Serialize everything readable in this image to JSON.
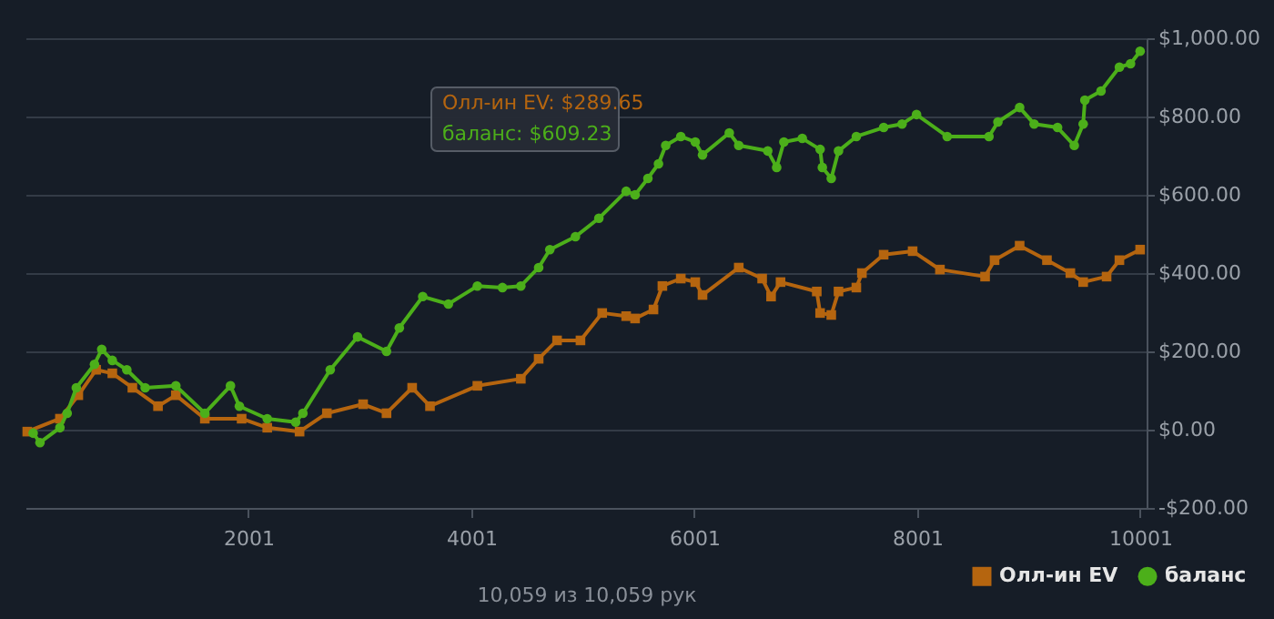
{
  "chart_data": {
    "type": "line",
    "xlabel": "10,059 из 10,059 рук",
    "xlim": [
      1,
      10059
    ],
    "xticks": [
      2001,
      4001,
      6001,
      8001,
      10001
    ],
    "ylim": [
      -200,
      1000
    ],
    "yticks": [
      {
        "value": -200,
        "label": "-$200.00"
      },
      {
        "value": 0,
        "label": "$0.00"
      },
      {
        "value": 200,
        "label": "$200.00"
      },
      {
        "value": 400,
        "label": "$400.00"
      },
      {
        "value": 600,
        "label": "$600.00"
      },
      {
        "value": 800,
        "label": "$800.00"
      },
      {
        "value": 1000,
        "label": "$1,000.00"
      }
    ],
    "grid": "y",
    "legend": "bottom right",
    "line_style": "solid",
    "series": [
      {
        "name": "Олл-ин EV",
        "color": "#b5650f",
        "marker": "square",
        "x": [
          17,
          310,
          475,
          635,
          780,
          960,
          1190,
          1350,
          1610,
          1940,
          2170,
          2460,
          2705,
          3030,
          3240,
          3470,
          3630,
          4055,
          4445,
          4605,
          4770,
          4980,
          5175,
          5390,
          5470,
          5635,
          5715,
          5880,
          6010,
          6075,
          6400,
          6610,
          6690,
          6775,
          7100,
          7130,
          7230,
          7295,
          7455,
          7505,
          7700,
          7960,
          8205,
          8610,
          8695,
          8920,
          9165,
          9375,
          9490,
          9700,
          9815,
          10001
        ],
        "values": [
          -5,
          28,
          88,
          153,
          144,
          107,
          60,
          88,
          28,
          28,
          5,
          -5,
          42,
          65,
          42,
          107,
          60,
          112,
          130,
          181,
          228,
          228,
          298,
          290,
          284,
          307,
          367,
          386,
          377,
          344,
          414,
          386,
          340,
          377,
          353,
          298,
          293,
          353,
          363,
          400,
          447,
          456,
          409,
          391,
          433,
          470,
          433,
          400,
          377,
          391,
          433,
          460
        ]
      },
      {
        "name": "баланс",
        "color": "#4caf1a",
        "marker": "circle",
        "x": [
          70,
          131,
          310,
          375,
          457,
          620,
          685,
          780,
          910,
          1075,
          1350,
          1610,
          1840,
          1920,
          2170,
          2425,
          2490,
          2735,
          2980,
          3240,
          3355,
          3565,
          3795,
          4055,
          4280,
          4445,
          4605,
          4705,
          4935,
          5145,
          5390,
          5470,
          5585,
          5680,
          5745,
          5880,
          6010,
          6075,
          6315,
          6400,
          6660,
          6740,
          6805,
          6970,
          7130,
          7150,
          7230,
          7295,
          7455,
          7700,
          7865,
          7995,
          8270,
          8645,
          8725,
          8920,
          9050,
          9260,
          9410,
          9490,
          9505,
          9650,
          9815,
          9915,
          10001
        ],
        "values": [
          -9,
          -33,
          5,
          42,
          107,
          167,
          205,
          177,
          153,
          107,
          112,
          42,
          112,
          60,
          28,
          19,
          42,
          153,
          237,
          200,
          260,
          340,
          321,
          367,
          363,
          367,
          414,
          460,
          493,
          540,
          609,
          600,
          642,
          679,
          726,
          749,
          735,
          702,
          758,
          726,
          712,
          670,
          735,
          744,
          716,
          670,
          642,
          712,
          749,
          772,
          781,
          805,
          749,
          749,
          786,
          823,
          781,
          772,
          726,
          781,
          842,
          865,
          926,
          935,
          967
        ]
      }
    ],
    "annotations": [
      "Олл-ин EV: $289.65",
      "баланс: $609.23"
    ]
  }
}
